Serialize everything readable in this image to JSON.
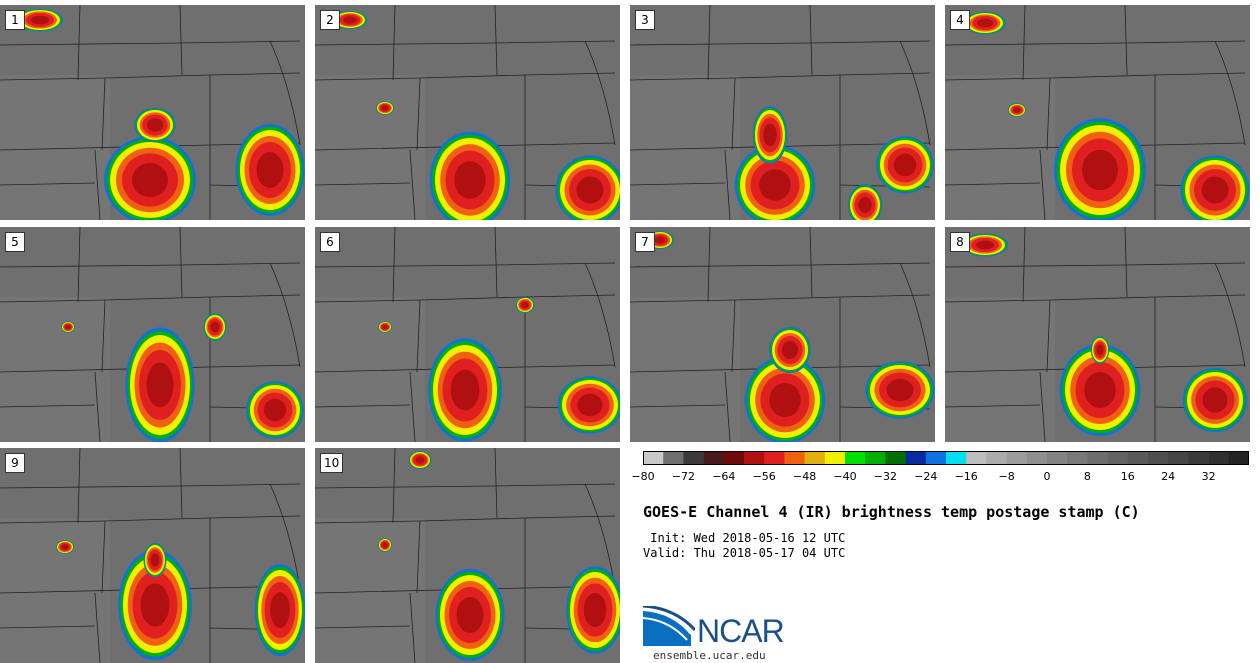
{
  "figure": {
    "title": "GOES-E Channel 4 (IR) brightness temp postage stamp (C)",
    "init_text": " Init: Wed 2018-05-16 12 UTC",
    "valid_text": "Valid: Thu 2018-05-17 04 UTC"
  },
  "panels": [
    {
      "label": "1"
    },
    {
      "label": "2"
    },
    {
      "label": "3"
    },
    {
      "label": "4"
    },
    {
      "label": "5"
    },
    {
      "label": "6"
    },
    {
      "label": "7"
    },
    {
      "label": "8"
    },
    {
      "label": "9"
    },
    {
      "label": "10"
    }
  ],
  "colorbar": {
    "unit": "C",
    "min": -80,
    "max": 40,
    "step": 4,
    "tick_labels": [
      "−80",
      "−72",
      "−64",
      "−56",
      "−48",
      "−40",
      "−32",
      "−24",
      "−16",
      "−8",
      "0",
      "8",
      "16",
      "24",
      "32"
    ],
    "colors": [
      "#c8c8c8",
      "#6e6e6e",
      "#3a3a3a",
      "#4a1a1a",
      "#6e0a0a",
      "#b01010",
      "#e02020",
      "#f06010",
      "#e0b010",
      "#f0f000",
      "#00e000",
      "#00b000",
      "#007000",
      "#0a2aa0",
      "#1070e0",
      "#00e0f0",
      "#bdbdbd",
      "#acacac",
      "#9c9c9c",
      "#8f8f8f",
      "#838383",
      "#787878",
      "#6d6d6d",
      "#636363",
      "#595959",
      "#4f4f4f",
      "#454545",
      "#3a3a3a",
      "#303030",
      "#242424"
    ]
  },
  "logo": {
    "text": "NCAR",
    "url_text": "ensemble.ucar.edu"
  },
  "colors": {
    "map_background": "#6f6f6f",
    "storm_core": "#e02020",
    "storm_edge": "#f0f000"
  }
}
